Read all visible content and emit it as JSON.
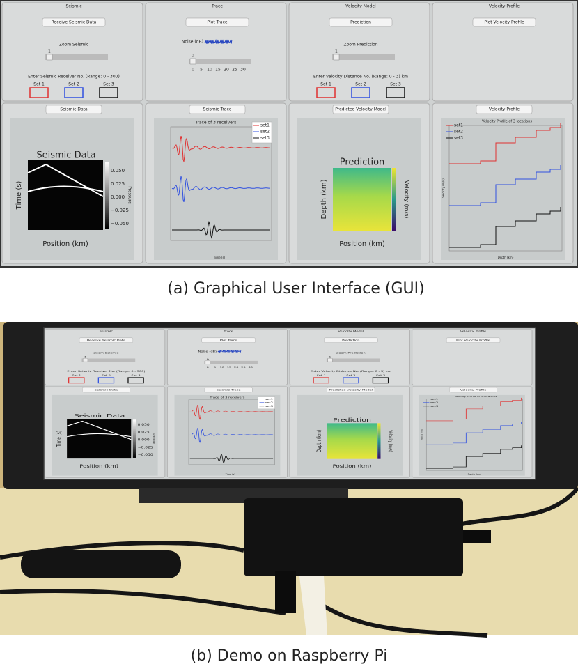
{
  "panels": [
    {
      "title": "Seismic",
      "button": "Receive Seismic Data",
      "zoom_label": "Zoom Seismic",
      "slider_value": 1,
      "entry_label": "Enter Seismic Receiver No. (Range: 0 - 300)",
      "sets": [
        "Set 1",
        "Set 2",
        "Set 3"
      ]
    },
    {
      "title": "Trace",
      "button": "Plot Trace",
      "noise_label": "Noise (dB)",
      "slider_value": 0,
      "slider_ticks": [
        0,
        5,
        10,
        15,
        20,
        25,
        30
      ]
    },
    {
      "title": "Velocity Model",
      "button": "Prediction",
      "zoom_label": "Zoom Prediction",
      "slider_value": 1,
      "entry_label": "Enter Velocity Distance No. (Range: 0 - 3) km",
      "sets": [
        "Set 1",
        "Set 2",
        "Set 3"
      ]
    },
    {
      "title": "Velocity Profile",
      "button": "Plot Velocity Profile"
    }
  ],
  "plots": [
    {
      "header": "Seismic Data",
      "title": "Seismic Data",
      "xlabel": "Position (km)",
      "ylabel": "Time (s)",
      "colorbar_label": "Pressure",
      "colorbar_ticks": [
        {
          "value": 0.05,
          "label": "0.050"
        },
        {
          "value": 0.025,
          "label": "0.025"
        },
        {
          "value": 0,
          "label": "0.000"
        },
        {
          "value": -0.025,
          "label": "−0.025"
        },
        {
          "value": -0.05,
          "label": "−0.050"
        }
      ]
    },
    {
      "header": "Seismic Trace",
      "title": "Trace of 3 receivers",
      "legend": [
        "set1",
        "set2",
        "set3"
      ],
      "xlabel": "Time (s)"
    },
    {
      "header": "Predicted Velocity Model",
      "title": "Prediction",
      "xlabel": "Position (km)",
      "ylabel": "Depth (km)",
      "colorbar_label": "Velocity (m/s)"
    },
    {
      "header": "Velocity Profile",
      "title": "Velocity Profile of 3 locations",
      "legend": [
        "set1",
        "set2",
        "set3"
      ],
      "xlabel": "Depth (km)",
      "ylabel": "Velocity (m/s)"
    }
  ],
  "captions": [
    "(a) Graphical User Interface (GUI)",
    "(b) Demo on Raspberry Pi"
  ]
}
